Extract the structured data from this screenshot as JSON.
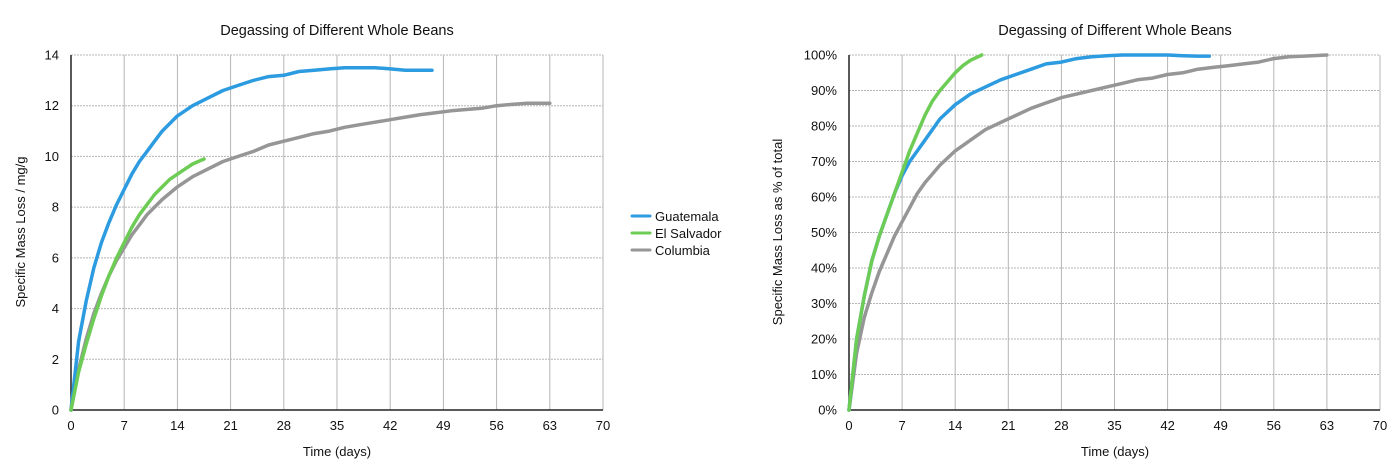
{
  "colors": {
    "Guatemala": "#2d9be0",
    "El Salvador": "#6dcc55",
    "Columbia": "#969696",
    "grid": "#b5b5b5"
  },
  "legend": {
    "items": [
      {
        "name": "Guatemala",
        "color": "#2d9be0"
      },
      {
        "name": "El Salvador",
        "color": "#6dcc55"
      },
      {
        "name": "Columbia",
        "color": "#969696"
      }
    ],
    "placement": "between charts, center"
  },
  "chart_data": [
    {
      "type": "line",
      "title": "Degassing of Different Whole Beans",
      "xlabel": "Time (days)",
      "ylabel": "Specific Mass Loss / mg/g",
      "xlim": [
        0,
        70
      ],
      "ylim": [
        0,
        14
      ],
      "xticks": [
        0,
        7,
        14,
        21,
        28,
        35,
        42,
        49,
        56,
        63,
        70
      ],
      "yticks": [
        0,
        2,
        4,
        6,
        8,
        10,
        12,
        14
      ],
      "ytick_labels": [
        "0",
        "2",
        "4",
        "6",
        "8",
        "10",
        "12",
        "14"
      ],
      "grid": true,
      "series": [
        {
          "name": "Guatemala",
          "x": [
            0,
            1,
            2,
            3,
            4,
            5,
            6,
            7,
            8,
            9,
            10,
            11,
            12,
            13,
            14,
            16,
            18,
            20,
            22,
            24,
            26,
            28,
            30,
            32,
            34,
            36,
            38,
            40,
            42,
            44,
            46,
            47.5
          ],
          "y": [
            0,
            2.7,
            4.3,
            5.6,
            6.6,
            7.4,
            8.1,
            8.7,
            9.3,
            9.8,
            10.2,
            10.6,
            11.0,
            11.3,
            11.6,
            12.0,
            12.3,
            12.6,
            12.8,
            13.0,
            13.15,
            13.2,
            13.35,
            13.4,
            13.45,
            13.5,
            13.5,
            13.5,
            13.45,
            13.4,
            13.4,
            13.4
          ]
        },
        {
          "name": "El Salvador",
          "x": [
            0,
            1,
            2,
            3,
            4,
            5,
            6,
            7,
            8,
            9,
            10,
            11,
            12,
            13,
            14,
            15,
            16,
            17.5
          ],
          "y": [
            0,
            1.5,
            2.6,
            3.6,
            4.5,
            5.3,
            6.0,
            6.6,
            7.2,
            7.7,
            8.1,
            8.5,
            8.8,
            9.1,
            9.3,
            9.5,
            9.7,
            9.9
          ]
        },
        {
          "name": "Columbia",
          "x": [
            0,
            1,
            2,
            3,
            4,
            5,
            6,
            7,
            8,
            9,
            10,
            12,
            14,
            16,
            18,
            20,
            22,
            24,
            26,
            28,
            30,
            32,
            34,
            36,
            38,
            40,
            42,
            44,
            46,
            48,
            50,
            52,
            54,
            56,
            58,
            60,
            63
          ],
          "y": [
            0,
            1.6,
            2.8,
            3.8,
            4.6,
            5.3,
            5.9,
            6.4,
            6.9,
            7.3,
            7.7,
            8.3,
            8.8,
            9.2,
            9.5,
            9.8,
            10.0,
            10.2,
            10.45,
            10.6,
            10.75,
            10.9,
            11.0,
            11.15,
            11.25,
            11.35,
            11.45,
            11.55,
            11.65,
            11.72,
            11.8,
            11.85,
            11.9,
            12.0,
            12.05,
            12.1,
            12.1
          ]
        }
      ]
    },
    {
      "type": "line",
      "title": "Degassing of Different Whole Beans",
      "xlabel": "Time (days)",
      "ylabel": "Specific Mass Loss as % of total",
      "xlim": [
        0,
        70
      ],
      "ylim": [
        0,
        100
      ],
      "xticks": [
        0,
        7,
        14,
        21,
        28,
        35,
        42,
        49,
        56,
        63,
        70
      ],
      "yticks": [
        0,
        10,
        20,
        30,
        40,
        50,
        60,
        70,
        80,
        90,
        100
      ],
      "ytick_labels": [
        "0%",
        "10%",
        "20%",
        "30%",
        "40%",
        "50%",
        "60%",
        "70%",
        "80%",
        "90%",
        "100%"
      ],
      "grid": true,
      "series": [
        {
          "name": "Guatemala",
          "x": [
            0,
            1,
            2,
            3,
            4,
            5,
            6,
            7,
            8,
            9,
            10,
            11,
            12,
            13,
            14,
            16,
            18,
            20,
            22,
            24,
            26,
            28,
            30,
            32,
            34,
            36,
            38,
            40,
            42,
            44,
            46,
            47.5
          ],
          "y": [
            0,
            20,
            32,
            42,
            49,
            55,
            61,
            66,
            70,
            73,
            76,
            79,
            82,
            84,
            86,
            89,
            91,
            93,
            94.5,
            96,
            97.5,
            98,
            99,
            99.5,
            99.8,
            100,
            100,
            100,
            100,
            99.8,
            99.7,
            99.7
          ]
        },
        {
          "name": "El Salvador",
          "x": [
            0,
            1,
            2,
            3,
            4,
            5,
            6,
            7,
            8,
            9,
            10,
            11,
            12,
            13,
            14,
            15,
            16,
            17.5
          ],
          "y": [
            0,
            20,
            32,
            42,
            49,
            55,
            61,
            67,
            73,
            78,
            83,
            87,
            90,
            92.5,
            95,
            97,
            98.5,
            100
          ]
        },
        {
          "name": "Columbia",
          "x": [
            0,
            1,
            2,
            3,
            4,
            5,
            6,
            7,
            8,
            9,
            10,
            12,
            14,
            16,
            18,
            20,
            22,
            24,
            26,
            28,
            30,
            32,
            34,
            36,
            38,
            40,
            42,
            44,
            46,
            48,
            50,
            52,
            54,
            56,
            58,
            60,
            63
          ],
          "y": [
            0,
            16,
            26,
            33,
            39,
            44,
            49,
            53,
            57,
            61,
            64,
            69,
            73,
            76,
            79,
            81,
            83,
            85,
            86.5,
            88,
            89,
            90,
            91,
            92,
            93,
            93.5,
            94.5,
            95,
            96,
            96.5,
            97,
            97.5,
            98,
            99,
            99.5,
            99.7,
            100
          ]
        }
      ]
    }
  ]
}
